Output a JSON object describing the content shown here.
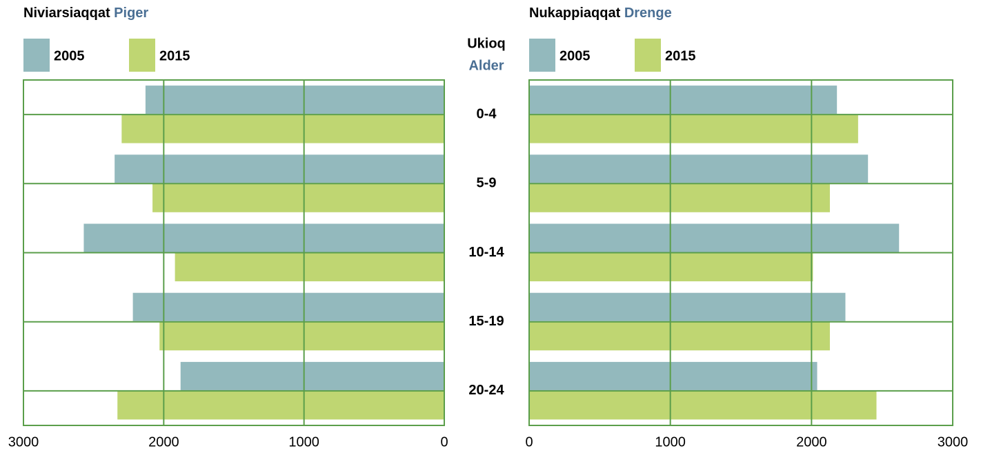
{
  "center_axis": {
    "title": "Ukioq",
    "title_translation": "Alder",
    "categories": [
      "0-4",
      "5-9",
      "10-14",
      "15-19",
      "20-24"
    ]
  },
  "chart_data": [
    {
      "type": "hbar",
      "title": "Niviarsiaqqat",
      "title_translation": "Piger",
      "series": [
        {
          "name": "2005",
          "color": "#93b9bd",
          "values": [
            2130,
            2350,
            2570,
            2220,
            1880
          ]
        },
        {
          "name": "2015",
          "color": "#bfd672",
          "values": [
            2300,
            2080,
            1920,
            2030,
            2330
          ]
        }
      ],
      "xlim": [
        3000,
        0
      ],
      "xticks": [
        3000,
        2000,
        1000,
        0
      ],
      "grid": true,
      "grid_color": "#5a9e4a"
    },
    {
      "type": "hbar",
      "title": "Nukappiaqqat",
      "title_translation": "Drenge",
      "series": [
        {
          "name": "2005",
          "color": "#93b9bd",
          "values": [
            2180,
            2400,
            2620,
            2240,
            2040
          ]
        },
        {
          "name": "2015",
          "color": "#bfd672",
          "values": [
            2330,
            2130,
            2010,
            2130,
            2460
          ]
        }
      ],
      "xlim": [
        0,
        3000
      ],
      "xticks": [
        0,
        1000,
        2000,
        3000
      ],
      "grid": true,
      "grid_color": "#5a9e4a"
    }
  ]
}
